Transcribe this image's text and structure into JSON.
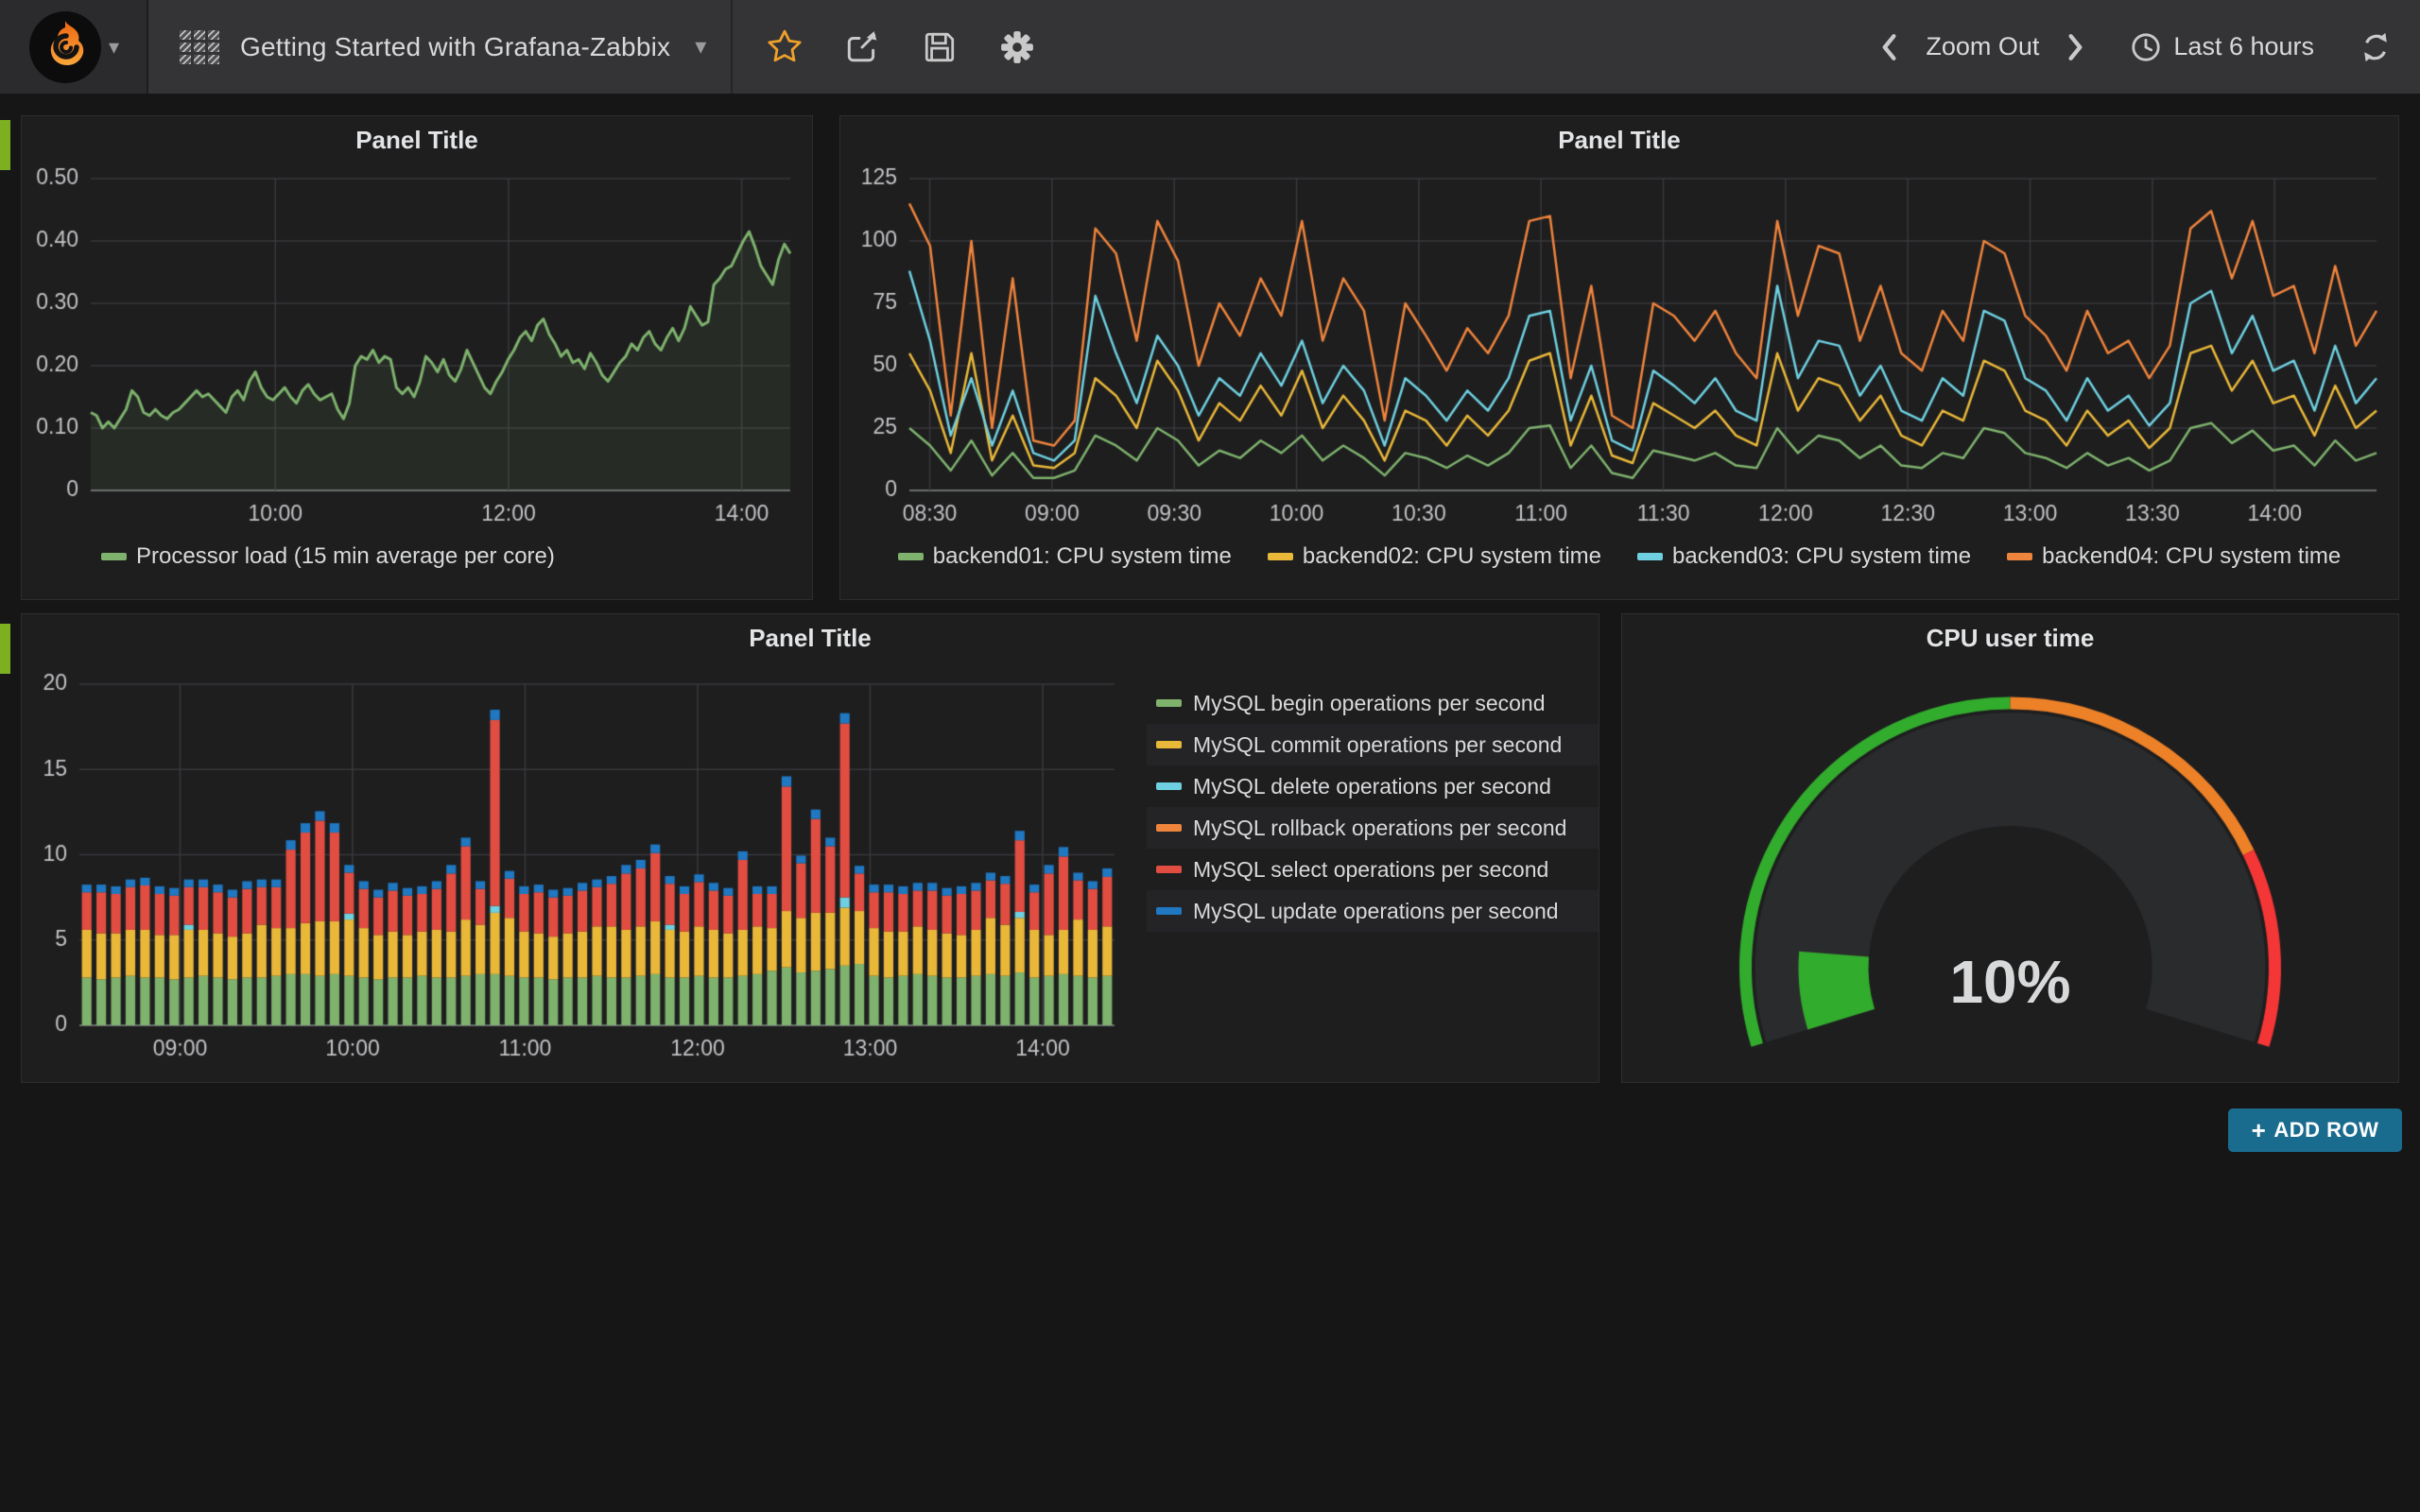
{
  "navbar": {
    "title": "Getting Started with Grafana-Zabbix",
    "zoom_out": "Zoom Out",
    "time_range": "Last 6 hours"
  },
  "icons": {
    "logo": "grafana-logo",
    "dashboard": "dashboard-grid-icon",
    "star": "star-icon",
    "share": "share-icon",
    "save": "save-icon",
    "settings": "gear-icon",
    "prev": "chevron-left-icon",
    "next": "chevron-right-icon",
    "clock": "clock-icon",
    "refresh": "refresh-icon",
    "add": "plus-icon"
  },
  "colors": {
    "page_bg": "#161617",
    "panel_bg": "#1e1e1f",
    "navbar_bg": "#343436",
    "text": "#d8d9da",
    "tick_text": "#c3c4c6",
    "grid": "#39393c",
    "green": "#7EB26D",
    "yellow": "#EAB839",
    "cyan": "#6ED0E0",
    "orange": "#EF843C",
    "red": "#E24D42",
    "blue": "#1F78C1",
    "row_handle": "#7cb021",
    "add_row_bg": "#1a6c8e",
    "star": "#efa12b",
    "gauge_green": "#32AC2D",
    "gauge_orange": "#ED8128",
    "gauge_red": "#F53636"
  },
  "panels": [
    "Panel Title",
    "Panel Title",
    "Panel Title",
    "CPU user time"
  ],
  "add_row": {
    "plus": "+",
    "label": "ADD ROW"
  },
  "chart_data": [
    {
      "type": "line",
      "title": "Panel Title",
      "x_range": [
        "08:25",
        "14:25"
      ],
      "xticks": [
        "10:00",
        "12:00",
        "14:00"
      ],
      "ylim": [
        0,
        0.5
      ],
      "yticks": [
        0,
        0.1,
        0.2,
        0.3,
        0.4,
        0.5
      ],
      "ytick_labels": [
        "0",
        "0.10",
        "0.20",
        "0.30",
        "0.40",
        "0.50"
      ],
      "grid": true,
      "legend_position": "bottom-left",
      "plot": {
        "l": 66,
        "r": 16,
        "t": 16,
        "b": 46
      },
      "series": [
        {
          "name": "Processor load (15 min average per core)",
          "color": "#7EB26D",
          "fill": true,
          "line_width": 3,
          "values": [
            0.125,
            0.12,
            0.1,
            0.11,
            0.1,
            0.115,
            0.13,
            0.16,
            0.15,
            0.125,
            0.12,
            0.13,
            0.12,
            0.115,
            0.125,
            0.13,
            0.14,
            0.15,
            0.16,
            0.15,
            0.155,
            0.145,
            0.135,
            0.125,
            0.15,
            0.16,
            0.145,
            0.175,
            0.19,
            0.165,
            0.15,
            0.145,
            0.155,
            0.165,
            0.15,
            0.14,
            0.16,
            0.17,
            0.155,
            0.145,
            0.15,
            0.155,
            0.13,
            0.115,
            0.14,
            0.2,
            0.215,
            0.21,
            0.225,
            0.205,
            0.215,
            0.21,
            0.165,
            0.155,
            0.165,
            0.15,
            0.175,
            0.215,
            0.205,
            0.19,
            0.21,
            0.185,
            0.175,
            0.195,
            0.225,
            0.205,
            0.185,
            0.165,
            0.155,
            0.175,
            0.19,
            0.21,
            0.225,
            0.245,
            0.255,
            0.24,
            0.265,
            0.275,
            0.25,
            0.235,
            0.215,
            0.225,
            0.205,
            0.21,
            0.195,
            0.22,
            0.205,
            0.185,
            0.175,
            0.19,
            0.205,
            0.215,
            0.235,
            0.225,
            0.245,
            0.255,
            0.235,
            0.225,
            0.245,
            0.26,
            0.24,
            0.26,
            0.295,
            0.28,
            0.265,
            0.27,
            0.33,
            0.34,
            0.355,
            0.36,
            0.38,
            0.4,
            0.415,
            0.39,
            0.36,
            0.345,
            0.33,
            0.37,
            0.395,
            0.38
          ]
        }
      ]
    },
    {
      "type": "line",
      "title": "Panel Title",
      "x_range": [
        "08:25",
        "14:25"
      ],
      "xticks": [
        "08:30",
        "09:00",
        "09:30",
        "10:00",
        "10:30",
        "11:00",
        "11:30",
        "12:00",
        "12:30",
        "13:00",
        "13:30",
        "14:00"
      ],
      "ylim": [
        0,
        125
      ],
      "yticks": [
        0,
        25,
        50,
        75,
        100,
        125
      ],
      "ytick_labels": [
        "0",
        "25",
        "50",
        "75",
        "100",
        "125"
      ],
      "grid": true,
      "legend_position": "bottom-center",
      "plot": {
        "l": 66,
        "r": 16,
        "t": 16,
        "b": 46
      },
      "series": [
        {
          "name": "backend01: CPU system time",
          "color": "#7EB26D",
          "line_width": 2.5,
          "values": [
            25,
            18,
            8,
            20,
            6,
            15,
            5,
            5,
            8,
            22,
            18,
            12,
            25,
            20,
            10,
            16,
            13,
            20,
            15,
            22,
            12,
            18,
            13,
            6,
            15,
            13,
            9,
            14,
            10,
            15,
            25,
            26,
            9,
            18,
            7,
            5,
            16,
            14,
            12,
            15,
            10,
            9,
            25,
            15,
            22,
            20,
            13,
            18,
            10,
            9,
            15,
            13,
            25,
            23,
            15,
            13,
            9,
            15,
            10,
            13,
            8,
            12,
            25,
            27,
            19,
            24,
            16,
            18,
            10,
            20,
            12,
            15
          ]
        },
        {
          "name": "backend02: CPU system time",
          "color": "#EAB839",
          "line_width": 2.5,
          "values": [
            55,
            40,
            15,
            55,
            12,
            30,
            10,
            9,
            15,
            45,
            38,
            25,
            52,
            40,
            20,
            35,
            28,
            42,
            30,
            48,
            25,
            38,
            28,
            12,
            32,
            28,
            18,
            30,
            22,
            32,
            52,
            55,
            18,
            38,
            14,
            11,
            35,
            30,
            25,
            32,
            22,
            18,
            55,
            32,
            45,
            42,
            28,
            38,
            22,
            18,
            32,
            28,
            52,
            48,
            32,
            28,
            18,
            32,
            22,
            28,
            17,
            25,
            55,
            58,
            40,
            52,
            35,
            38,
            22,
            42,
            25,
            32
          ]
        },
        {
          "name": "backend03: CPU system time",
          "color": "#6ED0E0",
          "line_width": 2.5,
          "values": [
            88,
            60,
            22,
            45,
            18,
            40,
            15,
            12,
            20,
            78,
            55,
            35,
            62,
            50,
            30,
            45,
            38,
            55,
            42,
            60,
            35,
            50,
            40,
            18,
            45,
            38,
            28,
            40,
            32,
            45,
            70,
            72,
            28,
            50,
            20,
            16,
            48,
            42,
            35,
            45,
            32,
            28,
            82,
            45,
            60,
            58,
            38,
            50,
            32,
            28,
            45,
            38,
            72,
            68,
            45,
            40,
            28,
            45,
            32,
            38,
            26,
            35,
            75,
            80,
            55,
            70,
            48,
            52,
            32,
            58,
            35,
            45
          ]
        },
        {
          "name": "backend04: CPU system time",
          "color": "#EF843C",
          "line_width": 2.5,
          "values": [
            115,
            98,
            30,
            100,
            25,
            85,
            20,
            18,
            28,
            105,
            95,
            60,
            108,
            92,
            50,
            75,
            62,
            85,
            70,
            108,
            60,
            85,
            72,
            28,
            75,
            62,
            48,
            65,
            55,
            70,
            108,
            110,
            45,
            82,
            30,
            25,
            75,
            70,
            60,
            72,
            55,
            45,
            108,
            70,
            98,
            95,
            60,
            82,
            55,
            48,
            72,
            60,
            100,
            95,
            70,
            62,
            48,
            72,
            55,
            60,
            45,
            58,
            105,
            112,
            85,
            108,
            78,
            82,
            55,
            90,
            58,
            72
          ]
        }
      ]
    },
    {
      "type": "stacked-bar",
      "title": "Panel Title",
      "x_range": [
        "08:25",
        "14:25"
      ],
      "xticks": [
        "09:00",
        "10:00",
        "11:00",
        "12:00",
        "13:00",
        "14:00"
      ],
      "ylim": [
        0,
        20
      ],
      "yticks": [
        0,
        5,
        10,
        15,
        20
      ],
      "ytick_labels": [
        "0",
        "5",
        "10",
        "15",
        "20"
      ],
      "grid": true,
      "legend_position": "right",
      "plot": {
        "l": 54,
        "r": 16,
        "t": 24,
        "b": 50
      },
      "series": [
        {
          "name": "MySQL begin operations per second",
          "color": "#7EB26D",
          "values": [
            2.8,
            2.7,
            2.8,
            2.9,
            2.8,
            2.8,
            2.7,
            2.8,
            2.9,
            2.8,
            2.7,
            2.8,
            2.8,
            2.9,
            3.0,
            3.0,
            2.9,
            3.0,
            2.9,
            2.8,
            2.7,
            2.8,
            2.8,
            2.9,
            2.8,
            2.8,
            2.9,
            3.0,
            3.0,
            2.9,
            2.8,
            2.8,
            2.7,
            2.8,
            2.8,
            2.9,
            2.8,
            2.8,
            2.9,
            3.0,
            2.8,
            2.8,
            2.9,
            2.8,
            2.8,
            2.9,
            3.0,
            3.2,
            3.4,
            3.1,
            3.2,
            3.3,
            3.5,
            3.6,
            2.9,
            2.8,
            2.9,
            3.0,
            2.9,
            2.8,
            2.8,
            2.9,
            3.0,
            2.9,
            3.1,
            2.8,
            2.9,
            3.0,
            2.9,
            2.8,
            2.9
          ]
        },
        {
          "name": "MySQL commit operations per second",
          "color": "#EAB839",
          "values": [
            2.8,
            2.7,
            2.6,
            2.7,
            2.8,
            2.5,
            2.6,
            2.8,
            2.7,
            2.6,
            2.5,
            2.6,
            3.1,
            2.8,
            2.7,
            3.0,
            3.2,
            3.1,
            3.3,
            2.9,
            2.6,
            2.7,
            2.5,
            2.6,
            2.8,
            2.7,
            3.3,
            2.9,
            3.6,
            3.4,
            2.7,
            2.6,
            2.5,
            2.6,
            2.7,
            2.9,
            3.0,
            2.8,
            2.9,
            3.1,
            2.8,
            2.7,
            2.9,
            2.8,
            2.6,
            2.7,
            2.8,
            2.5,
            3.3,
            3.2,
            3.4,
            3.3,
            3.4,
            3.1,
            2.8,
            2.7,
            2.6,
            2.8,
            2.7,
            2.6,
            2.5,
            2.7,
            3.3,
            3.0,
            3.2,
            2.8,
            2.4,
            2.6,
            3.3,
            2.8,
            2.9
          ]
        },
        {
          "name": "MySQL delete operations per second",
          "color": "#6ED0E0",
          "values": [
            0,
            0,
            0,
            0,
            0,
            0,
            0,
            0.3,
            0,
            0,
            0,
            0,
            0,
            0,
            0,
            0,
            0,
            0,
            0.35,
            0,
            0,
            0,
            0,
            0,
            0,
            0,
            0,
            0,
            0.4,
            0,
            0,
            0,
            0,
            0,
            0,
            0,
            0,
            0,
            0,
            0,
            0.3,
            0,
            0,
            0,
            0,
            0,
            0,
            0,
            0,
            0,
            0,
            0,
            0.6,
            0,
            0,
            0,
            0,
            0,
            0,
            0,
            0,
            0,
            0,
            0,
            0.35,
            0,
            0,
            0,
            0,
            0,
            0
          ]
        },
        {
          "name": "MySQL rollback operations per second",
          "color": "#EF843C",
          "values": [
            0,
            0,
            0,
            0,
            0,
            0,
            0,
            0,
            0,
            0,
            0,
            0,
            0,
            0,
            0,
            0,
            0,
            0,
            0,
            0,
            0,
            0,
            0,
            0,
            0,
            0,
            0,
            0,
            0,
            0,
            0,
            0,
            0,
            0,
            0,
            0,
            0,
            0,
            0,
            0,
            0,
            0,
            0,
            0,
            0,
            0,
            0,
            0,
            0,
            0,
            0,
            0,
            0,
            0,
            0,
            0,
            0,
            0,
            0,
            0,
            0,
            0,
            0,
            0,
            0,
            0,
            0,
            0,
            0,
            0,
            0
          ]
        },
        {
          "name": "MySQL select operations per second",
          "color": "#E24D42",
          "values": [
            2.2,
            2.4,
            2.3,
            2.5,
            2.6,
            2.4,
            2.3,
            2.2,
            2.5,
            2.4,
            2.3,
            2.6,
            2.2,
            2.4,
            4.6,
            5.3,
            5.9,
            5.2,
            2.4,
            2.3,
            2.2,
            2.4,
            2.3,
            2.2,
            2.4,
            3.4,
            4.3,
            2.1,
            10.9,
            2.3,
            2.2,
            2.4,
            2.3,
            2.2,
            2.4,
            2.3,
            2.5,
            3.3,
            3.4,
            4.0,
            2.4,
            2.2,
            2.6,
            2.3,
            2.2,
            4.1,
            1.9,
            2.0,
            7.3,
            3.2,
            5.5,
            3.9,
            10.2,
            2.2,
            2.1,
            2.3,
            2.2,
            2.1,
            2.3,
            2.2,
            2.4,
            2.3,
            2.2,
            2.4,
            4.2,
            2.2,
            3.6,
            4.3,
            2.3,
            2.4,
            2.9
          ]
        },
        {
          "name": "MySQL update operations per second",
          "color": "#1F78C1",
          "values": [
            0.45,
            0.45,
            0.45,
            0.45,
            0.45,
            0.45,
            0.45,
            0.45,
            0.45,
            0.45,
            0.45,
            0.45,
            0.45,
            0.45,
            0.55,
            0.55,
            0.55,
            0.55,
            0.45,
            0.45,
            0.45,
            0.45,
            0.45,
            0.45,
            0.45,
            0.5,
            0.5,
            0.45,
            0.6,
            0.45,
            0.45,
            0.45,
            0.45,
            0.45,
            0.45,
            0.45,
            0.45,
            0.5,
            0.5,
            0.5,
            0.45,
            0.45,
            0.45,
            0.45,
            0.45,
            0.5,
            0.45,
            0.45,
            0.6,
            0.45,
            0.55,
            0.5,
            0.6,
            0.45,
            0.45,
            0.45,
            0.45,
            0.45,
            0.45,
            0.45,
            0.45,
            0.45,
            0.45,
            0.45,
            0.55,
            0.45,
            0.5,
            0.55,
            0.45,
            0.45,
            0.5
          ]
        }
      ]
    },
    {
      "type": "gauge",
      "title": "CPU user time",
      "value": 10,
      "display": "10%",
      "unit": "%",
      "min": 0,
      "max": 100,
      "thresholds": [
        50,
        80
      ],
      "colors": [
        "#32AC2D",
        "#ED8128",
        "#F53636"
      ],
      "body_color": "#2a2b2d"
    }
  ]
}
